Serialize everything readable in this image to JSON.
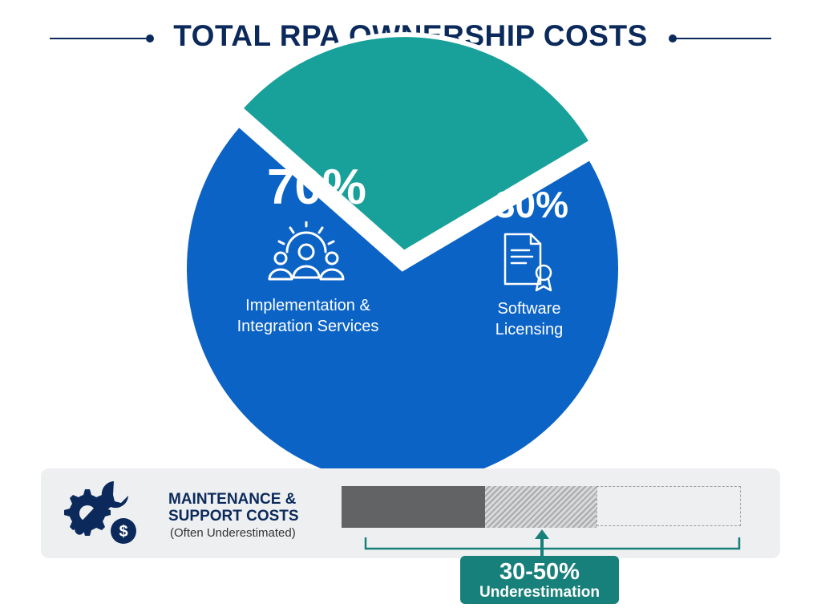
{
  "title": "TOTAL RPA OWNERSHIP COSTS",
  "colors": {
    "title": "#0b2a5b",
    "implementation": "#0b63c6",
    "licensing": "#18a09a",
    "callout": "#17807a",
    "bar_solid": "#616365"
  },
  "chart_data": {
    "type": "pie",
    "title": "TOTAL RPA OWNERSHIP COSTS",
    "slices": [
      {
        "label": "Implementation & Integration Services",
        "label_lines": [
          "Implementation &",
          "Integration Services"
        ],
        "value": 70,
        "display": "70%",
        "color": "#0b63c6",
        "icon": "people-gear-icon"
      },
      {
        "label": "Software Licensing",
        "label_lines": [
          "Software",
          "Licensing"
        ],
        "value": 30,
        "display": "30%",
        "color": "#18a09a",
        "icon": "certificate-icon"
      }
    ]
  },
  "maintenance": {
    "title_lines": [
      "MAINTENANCE &",
      "SUPPORT COSTS"
    ],
    "subtitle": "(Often Underestimated)",
    "icon": "wrench-gear-dollar-icon",
    "bar": {
      "solid_fraction": 0.36,
      "hatched_fraction": 0.28,
      "dashed_fraction": 0.36
    },
    "callout": {
      "value": "30-50%",
      "label": "Underestimation"
    }
  }
}
